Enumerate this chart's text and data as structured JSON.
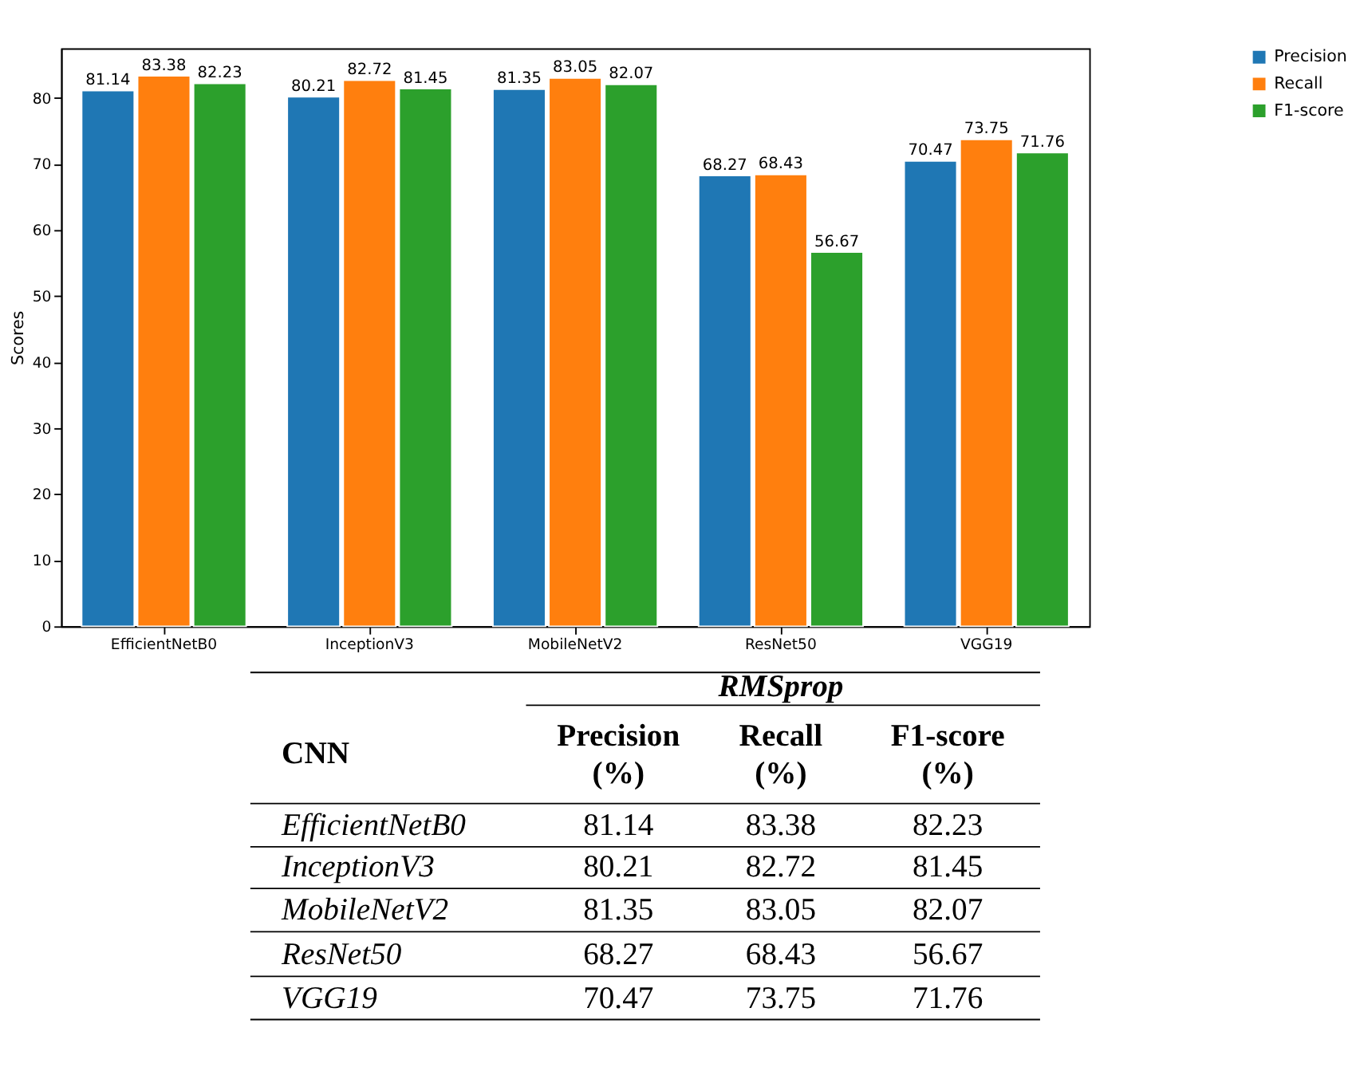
{
  "chart_data": [
    {
      "type": "bar",
      "ylabel": "Scores",
      "categories": [
        "EfficientNetB0",
        "InceptionV3",
        "MobileNetV2",
        "ResNet50",
        "VGG19"
      ],
      "series": [
        {
          "name": "Precision",
          "color": "#1f77b4",
          "values": [
            81.14,
            80.21,
            81.35,
            68.27,
            70.47
          ]
        },
        {
          "name": "Recall",
          "color": "#ff7f0e",
          "values": [
            83.38,
            82.72,
            83.05,
            68.43,
            73.75
          ]
        },
        {
          "name": "F1-score",
          "color": "#2ca02c",
          "values": [
            82.23,
            81.45,
            82.07,
            56.67,
            71.76
          ]
        }
      ],
      "ylim": [
        0,
        87.55
      ],
      "yticks": [
        0,
        10,
        20,
        30,
        40,
        50,
        60,
        70,
        80
      ],
      "grid": false,
      "legend": "top right",
      "data_labels": true
    },
    {
      "type": "other",
      "data_labels": true,
      "categories": [
        "EfficientNetB0",
        "InceptionV3",
        "MobileNetV2",
        "ResNet50",
        "VGG19"
      ],
      "series": [
        {
          "name": "Precision",
          "values": [
            81.14,
            80.21,
            81.35,
            68.27,
            70.47
          ]
        },
        {
          "name": "Recall",
          "values": [
            83.38,
            82.72,
            83.05,
            68.43,
            73.75
          ]
        },
        {
          "name": "F1-score",
          "values": [
            82.23,
            81.45,
            82.07,
            56.67,
            71.76
          ]
        }
      ],
      "annotations": [
        "RMSprop",
        "CNN",
        "(%)"
      ]
    }
  ]
}
